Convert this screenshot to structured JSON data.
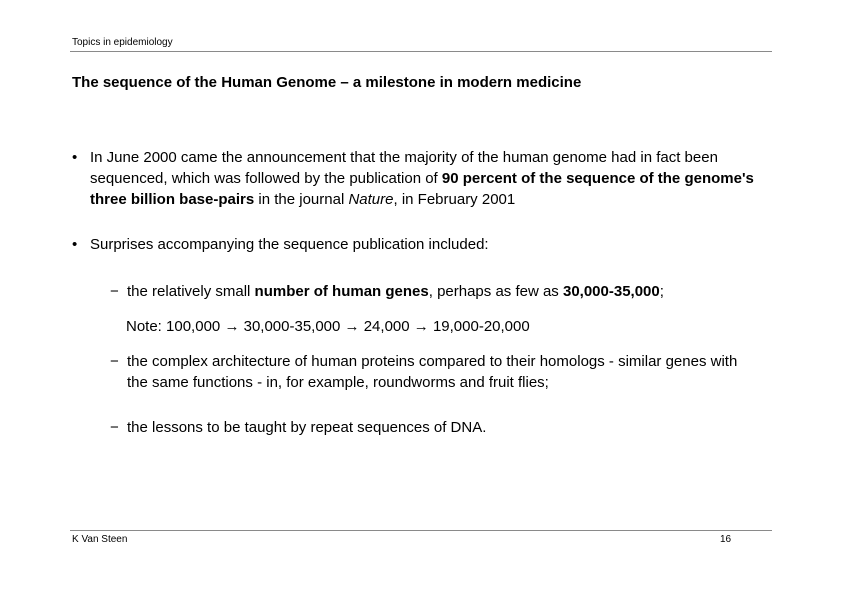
{
  "header": {
    "course": "Topics in epidemiology"
  },
  "slide": {
    "title": "The sequence of the Human Genome – a milestone in modern medicine",
    "bullet1": {
      "part1": "In June 2000 came the announcement that the majority of the human genome had in fact been sequenced, which was followed by the publication of ",
      "bold": "90 percent of the sequence of the genome's three billion base-pairs",
      "part2": " in the journal ",
      "italic": "Nature",
      "part3": ", in February 2001"
    },
    "bullet2": {
      "text": "Surprises accompanying the sequence publication included:"
    },
    "sub1": {
      "part1": "the relatively small ",
      "bold1": "number of human genes",
      "part2": ", perhaps as few as ",
      "bold2": "30,000-35,000",
      "part3": ";"
    },
    "note": {
      "label": "Note: ",
      "steps": [
        "100,000",
        "30,000-35,000",
        "24,000",
        "19,000-20,000"
      ],
      "arrow": "→"
    },
    "sub2": {
      "text": "the complex architecture of human proteins compared to their homologs - similar genes with the same functions - in, for example, roundworms and fruit flies;"
    },
    "sub3": {
      "text": "the lessons to be taught by repeat sequences of DNA."
    },
    "bullet_glyph": "•",
    "dash_glyph": "−"
  },
  "footer": {
    "author": "K Van Steen",
    "page_number": "16"
  }
}
